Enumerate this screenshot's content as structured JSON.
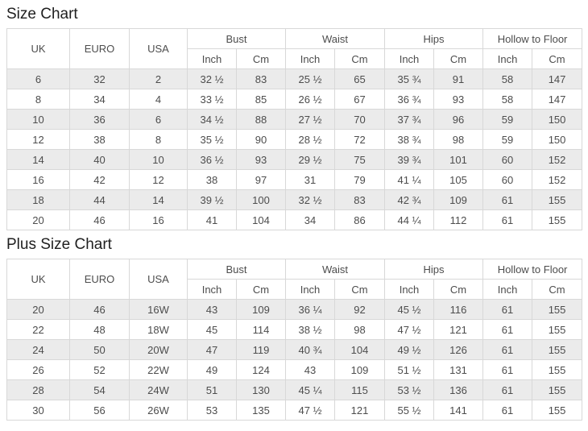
{
  "colors": {
    "row_stripe": "#ebebeb",
    "table_border": "#d8d8d8",
    "cell_text": "#4d4d4d",
    "title_text": "#1f1f1f",
    "background": "#ffffff"
  },
  "headers": {
    "uk": "UK",
    "euro": "EURO",
    "usa": "USA",
    "bust": "Bust",
    "waist": "Waist",
    "hips": "Hips",
    "hollow_to_floor": "Hollow to Floor",
    "inch": "Inch",
    "cm": "Cm"
  },
  "chart_data": [
    {
      "type": "table",
      "title": "Size Chart",
      "column_groups": [
        "UK",
        "EURO",
        "USA",
        "Bust",
        "Waist",
        "Hips",
        "Hollow to Floor"
      ],
      "sub_columns": [
        "Inch",
        "Cm"
      ],
      "columns": [
        "UK",
        "EURO",
        "USA",
        "Bust Inch",
        "Bust Cm",
        "Waist Inch",
        "Waist Cm",
        "Hips Inch",
        "Hips Cm",
        "Hollow to Floor Inch",
        "Hollow to Floor Cm"
      ],
      "rows": [
        [
          "6",
          "32",
          "2",
          "32 ½",
          "83",
          "25 ½",
          "65",
          "35 ¾",
          "91",
          "58",
          "147"
        ],
        [
          "8",
          "34",
          "4",
          "33 ½",
          "85",
          "26 ½",
          "67",
          "36 ¾",
          "93",
          "58",
          "147"
        ],
        [
          "10",
          "36",
          "6",
          "34 ½",
          "88",
          "27 ½",
          "70",
          "37 ¾",
          "96",
          "59",
          "150"
        ],
        [
          "12",
          "38",
          "8",
          "35 ½",
          "90",
          "28 ½",
          "72",
          "38 ¾",
          "98",
          "59",
          "150"
        ],
        [
          "14",
          "40",
          "10",
          "36 ½",
          "93",
          "29 ½",
          "75",
          "39 ¾",
          "101",
          "60",
          "152"
        ],
        [
          "16",
          "42",
          "12",
          "38",
          "97",
          "31",
          "79",
          "41 ¼",
          "105",
          "60",
          "152"
        ],
        [
          "18",
          "44",
          "14",
          "39 ½",
          "100",
          "32 ½",
          "83",
          "42 ¾",
          "109",
          "61",
          "155"
        ],
        [
          "20",
          "46",
          "16",
          "41",
          "104",
          "34",
          "86",
          "44 ¼",
          "112",
          "61",
          "155"
        ]
      ]
    },
    {
      "type": "table",
      "title": "Plus Size Chart",
      "column_groups": [
        "UK",
        "EURO",
        "USA",
        "Bust",
        "Waist",
        "Hips",
        "Hollow to Floor"
      ],
      "sub_columns": [
        "Inch",
        "Cm"
      ],
      "columns": [
        "UK",
        "EURO",
        "USA",
        "Bust Inch",
        "Bust Cm",
        "Waist Inch",
        "Waist Cm",
        "Hips Inch",
        "Hips Cm",
        "Hollow to Floor Inch",
        "Hollow to Floor Cm"
      ],
      "rows": [
        [
          "20",
          "46",
          "16W",
          "43",
          "109",
          "36 ¼",
          "92",
          "45 ½",
          "116",
          "61",
          "155"
        ],
        [
          "22",
          "48",
          "18W",
          "45",
          "114",
          "38 ½",
          "98",
          "47 ½",
          "121",
          "61",
          "155"
        ],
        [
          "24",
          "50",
          "20W",
          "47",
          "119",
          "40 ¾",
          "104",
          "49 ½",
          "126",
          "61",
          "155"
        ],
        [
          "26",
          "52",
          "22W",
          "49",
          "124",
          "43",
          "109",
          "51 ½",
          "131",
          "61",
          "155"
        ],
        [
          "28",
          "54",
          "24W",
          "51",
          "130",
          "45 ¼",
          "115",
          "53 ½",
          "136",
          "61",
          "155"
        ],
        [
          "30",
          "56",
          "26W",
          "53",
          "135",
          "47 ½",
          "121",
          "55 ½",
          "141",
          "61",
          "155"
        ]
      ]
    }
  ]
}
